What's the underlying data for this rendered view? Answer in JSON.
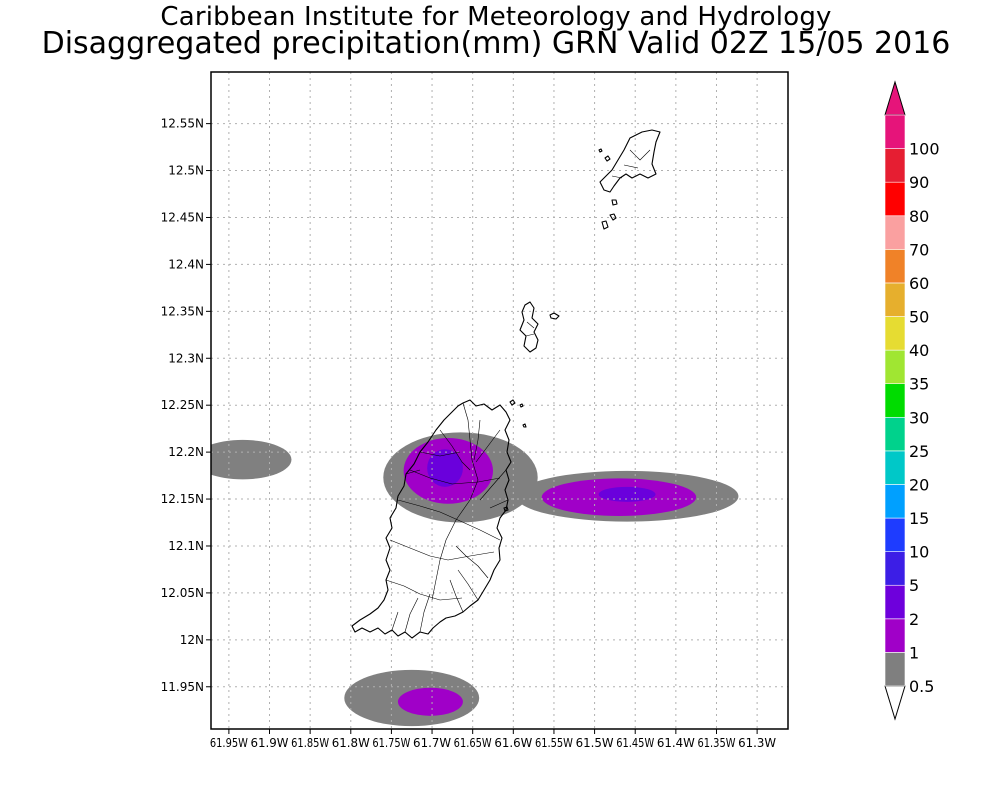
{
  "header": {
    "title": "Caribbean Institute for Meteorology and Hydrology",
    "subtitle": "Disaggregated precipitation(mm) GRN Valid 02Z 15/05 2016"
  },
  "map": {
    "lat_range": [
      11.905,
      12.605
    ],
    "lon_range": [
      -61.972,
      -61.262
    ],
    "lat_ticks": [
      {
        "value": 12.55,
        "label": "12.55N"
      },
      {
        "value": 12.5,
        "label": "12.5N"
      },
      {
        "value": 12.45,
        "label": "12.45N"
      },
      {
        "value": 12.4,
        "label": "12.4N"
      },
      {
        "value": 12.35,
        "label": "12.35N"
      },
      {
        "value": 12.3,
        "label": "12.3N"
      },
      {
        "value": 12.25,
        "label": "12.25N"
      },
      {
        "value": 12.2,
        "label": "12.2N"
      },
      {
        "value": 12.15,
        "label": "12.15N"
      },
      {
        "value": 12.1,
        "label": "12.1N"
      },
      {
        "value": 12.05,
        "label": "12.05N"
      },
      {
        "value": 12.0,
        "label": "12N"
      },
      {
        "value": 11.95,
        "label": "11.95N"
      }
    ],
    "lon_ticks": [
      {
        "value": -61.95,
        "label": "61.95W"
      },
      {
        "value": -61.9,
        "label": "61.9W"
      },
      {
        "value": -61.85,
        "label": "61.85W"
      },
      {
        "value": -61.8,
        "label": "61.8W"
      },
      {
        "value": -61.75,
        "label": "61.75W"
      },
      {
        "value": -61.7,
        "label": "61.7W"
      },
      {
        "value": -61.65,
        "label": "61.65W"
      },
      {
        "value": -61.6,
        "label": "61.6W"
      },
      {
        "value": -61.55,
        "label": "61.55W"
      },
      {
        "value": -61.5,
        "label": "61.5W"
      },
      {
        "value": -61.45,
        "label": "61.45W"
      },
      {
        "value": -61.4,
        "label": "61.4W"
      },
      {
        "value": -61.35,
        "label": "61.35W"
      },
      {
        "value": -61.3,
        "label": "61.3W"
      }
    ],
    "grid": true
  },
  "legend": {
    "levels": [
      {
        "label": "0.5",
        "color": "#7f7f7f"
      },
      {
        "label": "1",
        "color": "#a000c8"
      },
      {
        "label": "2",
        "color": "#6e00dc"
      },
      {
        "label": "5",
        "color": "#3c1ee6"
      },
      {
        "label": "10",
        "color": "#1e3cff"
      },
      {
        "label": "15",
        "color": "#00a0ff"
      },
      {
        "label": "20",
        "color": "#00c8c8"
      },
      {
        "label": "25",
        "color": "#00d28c"
      },
      {
        "label": "30",
        "color": "#00dc00"
      },
      {
        "label": "35",
        "color": "#a0e632"
      },
      {
        "label": "40",
        "color": "#e6dc32"
      },
      {
        "label": "50",
        "color": "#e6af2d"
      },
      {
        "label": "60",
        "color": "#f08228"
      },
      {
        "label": "70",
        "color": "#faa0a0"
      },
      {
        "label": "80",
        "color": "#ff0000"
      },
      {
        "label": "90",
        "color": "#e61e32"
      },
      {
        "label": "100",
        "color": "#e6147a"
      }
    ],
    "under_color": "#ffffff",
    "over_color": "#e6147a"
  },
  "precip_areas": [
    {
      "level": "0.5",
      "color": "#808080",
      "center_lon": -61.933,
      "center_lat": 12.192,
      "semi_lon": 0.06,
      "semi_lat": 0.021
    },
    {
      "level": "0.5",
      "color": "#808080",
      "center_lon": -61.665,
      "center_lat": 12.173,
      "semi_lon": 0.095,
      "semi_lat": 0.048
    },
    {
      "level": "0.5",
      "color": "#808080",
      "center_lon": -61.46,
      "center_lat": 12.153,
      "semi_lon": 0.137,
      "semi_lat": 0.027
    },
    {
      "level": "0.5",
      "color": "#808080",
      "center_lon": -61.725,
      "center_lat": 11.938,
      "semi_lon": 0.083,
      "semi_lat": 0.03
    },
    {
      "level": "1",
      "color": "#a000c8",
      "center_lon": -61.68,
      "center_lat": 12.18,
      "semi_lon": 0.055,
      "semi_lat": 0.035
    },
    {
      "level": "1",
      "color": "#a000c8",
      "center_lon": -61.47,
      "center_lat": 12.152,
      "semi_lon": 0.095,
      "semi_lat": 0.02
    },
    {
      "level": "1",
      "color": "#a000c8",
      "center_lon": -61.702,
      "center_lat": 11.934,
      "semi_lon": 0.04,
      "semi_lat": 0.015
    },
    {
      "level": "2",
      "color": "#6a00dc",
      "center_lon": -61.684,
      "center_lat": 12.183,
      "semi_lon": 0.022,
      "semi_lat": 0.02
    },
    {
      "level": "2",
      "color": "#6a00dc",
      "center_lon": -61.46,
      "center_lat": 12.155,
      "semi_lon": 0.035,
      "semi_lat": 0.008
    }
  ]
}
